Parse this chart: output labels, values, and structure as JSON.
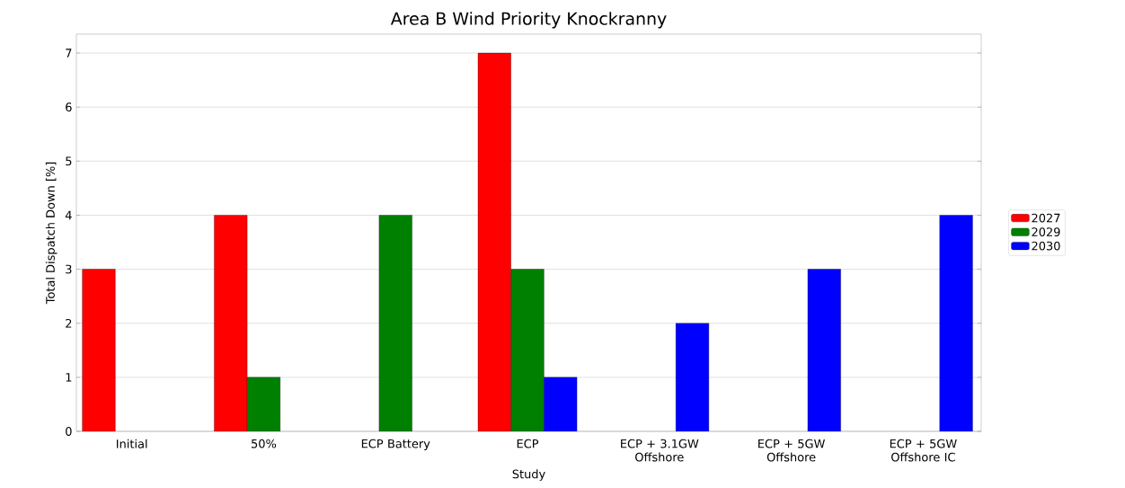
{
  "chart_data": {
    "type": "bar",
    "title": "Area B Wind Priority Knockranny",
    "xlabel": "Study",
    "ylabel": "Total Dispatch Down [%]",
    "categories": [
      "Initial",
      "50%",
      "ECP Battery",
      "ECP",
      "ECP + 3.1GW Offshore",
      "ECP + 5GW Offshore",
      "ECP + 5GW Offshore IC"
    ],
    "series": [
      {
        "name": "2027",
        "color": "#ff0000",
        "values": [
          3,
          4,
          null,
          7,
          null,
          null,
          null
        ]
      },
      {
        "name": "2029",
        "color": "#008000",
        "values": [
          null,
          1,
          4,
          3,
          null,
          null,
          null
        ]
      },
      {
        "name": "2030",
        "color": "#0000ff",
        "values": [
          null,
          null,
          null,
          1,
          2,
          3,
          4
        ]
      }
    ],
    "ylim": [
      0,
      7.35
    ],
    "yticks": [
      0,
      1,
      2,
      3,
      4,
      5,
      6,
      7
    ],
    "grid": "y",
    "legend": "right"
  }
}
